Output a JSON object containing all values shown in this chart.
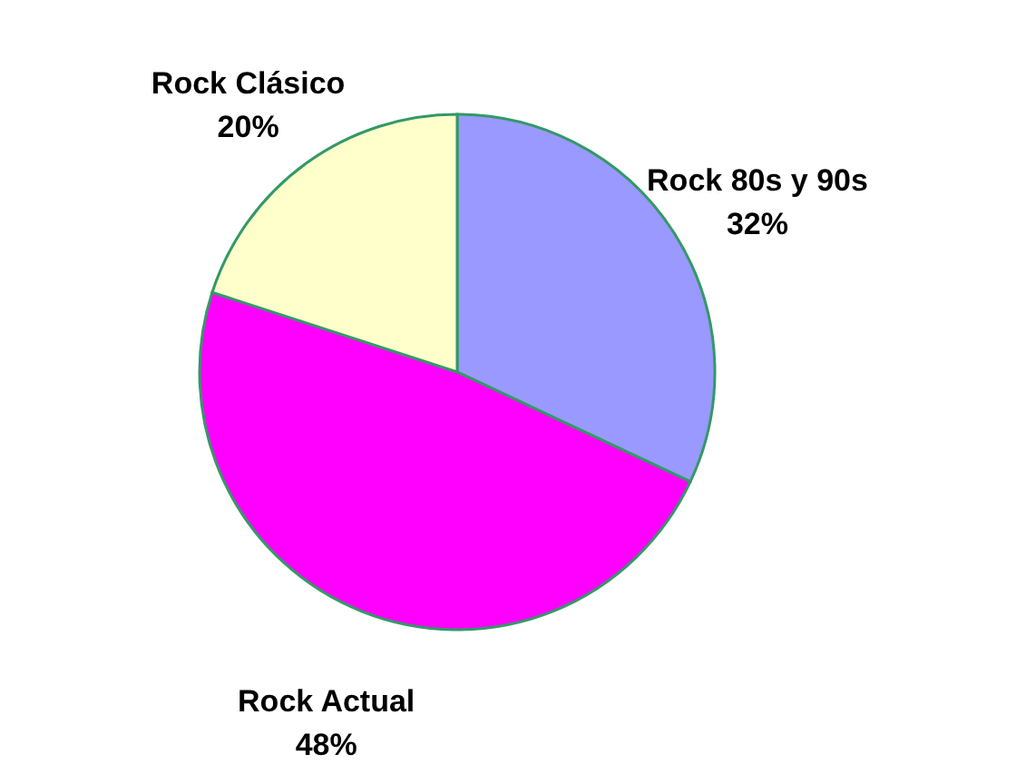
{
  "chart_data": {
    "type": "pie",
    "categories": [
      "Rock 80s y 90s",
      "Rock Actual",
      "Rock Clásico"
    ],
    "values": [
      32,
      48,
      20
    ],
    "colors": [
      "#9999ff",
      "#ff00ff",
      "#ffffcc"
    ],
    "value_labels": [
      "32%",
      "48%",
      "20%"
    ]
  }
}
